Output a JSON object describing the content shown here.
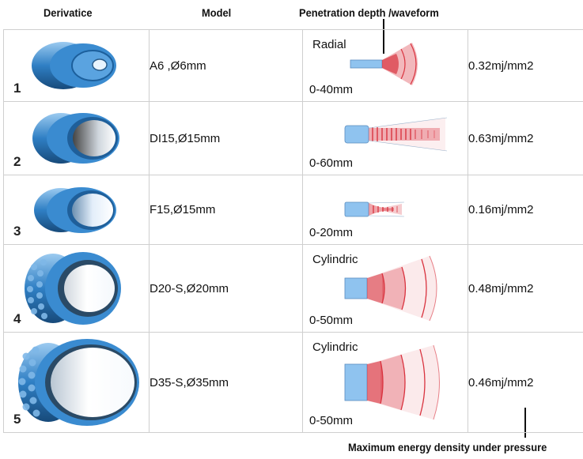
{
  "headers": {
    "derivative": "Derivatice",
    "model": "Model",
    "penetration": "Penetration depth /waveform"
  },
  "footer_label": "Maximum energy density under pressure",
  "rows": [
    {
      "number": "1",
      "model": "A6 ,Ø6mm",
      "wave_type": "Radial",
      "depth": "0-40mm",
      "energy": "0.32mj/mm2",
      "icon": "radial-wave-icon"
    },
    {
      "number": "2",
      "model": "DI15,Ø15mm",
      "wave_type": "",
      "depth": "0-60mm",
      "energy": "0.63mj/mm2",
      "icon": "long-focused-wave-icon"
    },
    {
      "number": "3",
      "model": "F15,Ø15mm",
      "wave_type": "",
      "depth": "0-20mm",
      "energy": "0.16mj/mm2",
      "icon": "focused-wave-icon"
    },
    {
      "number": "4",
      "model": "D20-S,Ø20mm",
      "wave_type": "Cylindric",
      "depth": "0-50mm",
      "energy": "0.48mj/mm2",
      "icon": "cylindric-wave-icon"
    },
    {
      "number": "5",
      "model": "D35-S,Ø35mm",
      "wave_type": "Cylindric",
      "depth": "0-50mm",
      "energy": "0.46mj/mm2",
      "icon": "cylindric-wave-icon"
    }
  ],
  "colors": {
    "handpiece_blue": "#2f7fc4",
    "probe_blue": "#8fc3ef",
    "wave_red": "#d9333f"
  }
}
